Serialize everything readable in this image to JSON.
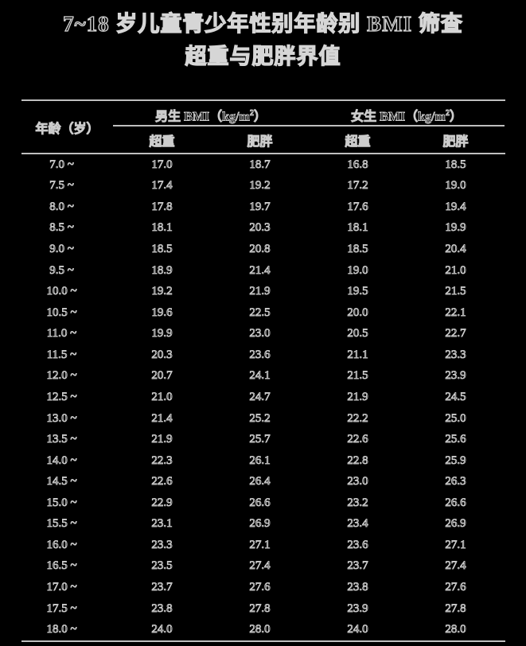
{
  "page": {
    "background": "#000000",
    "title_line1": "7~18 岁儿童青少年性别年龄别 BMI 筛查",
    "title_line2": "超重与肥胖界值"
  },
  "colors": {
    "rule": "#bfbfbf",
    "text_outline": "#cccccc",
    "background": "#000000"
  },
  "table": {
    "age_header": "年龄（岁）",
    "groups": [
      {
        "label_prefix": "男生 BMI（kg/m",
        "sup": "2",
        "label_suffix": "）",
        "sub": [
          "超重",
          "肥胖"
        ]
      },
      {
        "label_prefix": "女生 BMI（kg/m",
        "sup": "2",
        "label_suffix": "）",
        "sub": [
          "超重",
          "肥胖"
        ]
      }
    ],
    "rows": [
      {
        "age": "7.0 ~",
        "values": [
          "17.0",
          "18.7",
          "16.8",
          "18.5"
        ]
      },
      {
        "age": "7.5 ~",
        "values": [
          "17.4",
          "19.2",
          "17.2",
          "19.0"
        ]
      },
      {
        "age": "8.0 ~",
        "values": [
          "17.8",
          "19.7",
          "17.6",
          "19.4"
        ]
      },
      {
        "age": "8.5 ~",
        "values": [
          "18.1",
          "20.3",
          "18.1",
          "19.9"
        ]
      },
      {
        "age": "9.0 ~",
        "values": [
          "18.5",
          "20.8",
          "18.5",
          "20.4"
        ]
      },
      {
        "age": "9.5 ~",
        "values": [
          "18.9",
          "21.4",
          "19.0",
          "21.0"
        ]
      },
      {
        "age": "10.0 ~",
        "values": [
          "19.2",
          "21.9",
          "19.5",
          "21.5"
        ]
      },
      {
        "age": "10.5 ~",
        "values": [
          "19.6",
          "22.5",
          "20.0",
          "22.1"
        ]
      },
      {
        "age": "11.0 ~",
        "values": [
          "19.9",
          "23.0",
          "20.5",
          "22.7"
        ]
      },
      {
        "age": "11.5 ~",
        "values": [
          "20.3",
          "23.6",
          "21.1",
          "23.3"
        ]
      },
      {
        "age": "12.0 ~",
        "values": [
          "20.7",
          "24.1",
          "21.5",
          "23.9"
        ]
      },
      {
        "age": "12.5 ~",
        "values": [
          "21.0",
          "24.7",
          "21.9",
          "24.5"
        ]
      },
      {
        "age": "13.0 ~",
        "values": [
          "21.4",
          "25.2",
          "22.2",
          "25.0"
        ]
      },
      {
        "age": "13.5 ~",
        "values": [
          "21.9",
          "25.7",
          "22.6",
          "25.6"
        ]
      },
      {
        "age": "14.0 ~",
        "values": [
          "22.3",
          "26.1",
          "22.8",
          "25.9"
        ]
      },
      {
        "age": "14.5 ~",
        "values": [
          "22.6",
          "26.4",
          "23.0",
          "26.3"
        ]
      },
      {
        "age": "15.0 ~",
        "values": [
          "22.9",
          "26.6",
          "23.2",
          "26.6"
        ]
      },
      {
        "age": "15.5 ~",
        "values": [
          "23.1",
          "26.9",
          "23.4",
          "26.9"
        ]
      },
      {
        "age": "16.0 ~",
        "values": [
          "23.3",
          "27.1",
          "23.6",
          "27.1"
        ]
      },
      {
        "age": "16.5 ~",
        "values": [
          "23.5",
          "27.4",
          "23.7",
          "27.4"
        ]
      },
      {
        "age": "17.0 ~",
        "values": [
          "23.7",
          "27.6",
          "23.8",
          "27.6"
        ]
      },
      {
        "age": "17.5 ~",
        "values": [
          "23.8",
          "27.8",
          "23.9",
          "27.8"
        ]
      },
      {
        "age": "18.0 ~",
        "values": [
          "24.0",
          "28.0",
          "24.0",
          "28.0"
        ]
      }
    ]
  }
}
